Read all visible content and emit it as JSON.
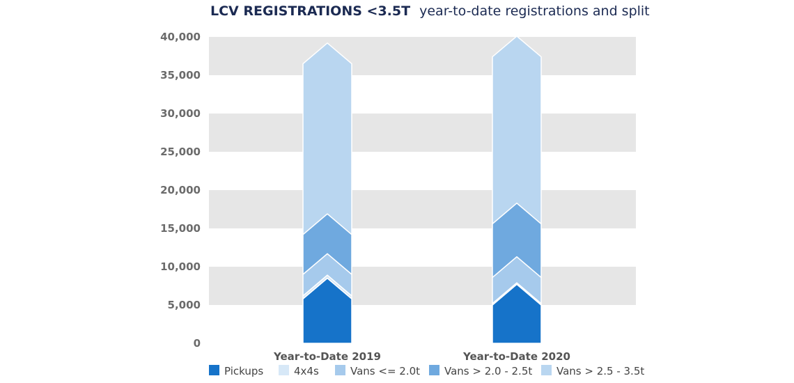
{
  "chart_data": {
    "type": "bar",
    "stacked": true,
    "title_bold": "LCV REGISTRATIONS <3.5T",
    "title_rest": "year-to-date registrations and split",
    "categories": [
      "Year-to-Date 2019",
      "Year-to-Date 2020"
    ],
    "series": [
      {
        "name": "Pickups",
        "values": [
          5800,
          5000
        ],
        "color": "#1673c9"
      },
      {
        "name": "4x4s",
        "values": [
          400,
          200
        ],
        "color": "#d7e8f7"
      },
      {
        "name": "Vans <= 2.0t",
        "values": [
          2800,
          3400
        ],
        "color": "#a6caec"
      },
      {
        "name": "Vans > 2.0 - 2.5t",
        "values": [
          5200,
          7000
        ],
        "color": "#6fa9df"
      },
      {
        "name": "Vans > 2.5 - 3.5t",
        "values": [
          22300,
          21800
        ],
        "color": "#b9d6f0"
      }
    ],
    "ylim": [
      0,
      40000
    ],
    "yticks": [
      "40,000",
      "35,000",
      "30,000",
      "25,000",
      "20,000",
      "15,000",
      "10,000",
      "5,000",
      "0"
    ],
    "ytick_values": [
      40000,
      35000,
      30000,
      25000,
      20000,
      15000,
      10000,
      5000,
      0
    ],
    "legend_position": "bottom",
    "grid": "alternating horizontal bands"
  }
}
